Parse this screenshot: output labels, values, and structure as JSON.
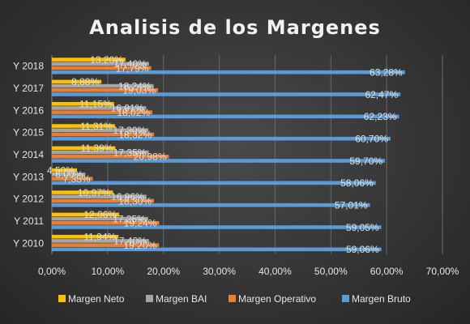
{
  "chart_data": {
    "type": "bar",
    "orientation": "horizontal",
    "title": "Analisis de los Margenes",
    "categories": [
      "Y 2010",
      "Y 2011",
      "Y 2012",
      "Y 2013",
      "Y 2014",
      "Y 2015",
      "Y 2016",
      "Y 2017",
      "Y 2018"
    ],
    "series": [
      {
        "name": "Margen Neto",
        "color": "#ffc000",
        "values": [
          11.94,
          12.06,
          10.97,
          4.5,
          11.39,
          11.31,
          11.15,
          8.88,
          13.2
        ],
        "labels": [
          "11,94%",
          "12,06%",
          "10,97%",
          "4,50%",
          "11,39%",
          "11,31%",
          "11,15%",
          "8,88%",
          "13,20%"
        ]
      },
      {
        "name": "Margen BAI",
        "color": "#a5a5a5",
        "values": [
          17.4,
          17.25,
          16.96,
          6.0,
          17.35,
          17.3,
          16.91,
          18.24,
          17.4
        ],
        "labels": [
          "17,40%",
          "17,25%",
          "16,96%",
          "6,00%",
          "17,35%",
          "17,30%",
          "16,91%",
          "18,24%",
          "17,40%"
        ]
      },
      {
        "name": "Margen Operativo",
        "color": "#ed7d31",
        "values": [
          19.2,
          19.24,
          18.3,
          7.35,
          20.98,
          18.32,
          18.02,
          19.03,
          17.79
        ],
        "labels": [
          "19,20%",
          "19,24%",
          "18,30%",
          "7,35%",
          "20,98%",
          "18,32%",
          "18,02%",
          "19,03%",
          "17,79%"
        ]
      },
      {
        "name": "Margen Bruto",
        "color": "#5b9bd5",
        "values": [
          59.06,
          59.05,
          57.01,
          58.06,
          59.7,
          60.7,
          62.23,
          62.47,
          63.28
        ],
        "labels": [
          "59,06%",
          "59,05%",
          "57,01%",
          "58,06%",
          "59,70%",
          "60,70%",
          "62,23%",
          "62,47%",
          "63,28%"
        ]
      }
    ],
    "xlim": [
      0,
      70
    ],
    "x_ticks": [
      "0,00%",
      "10,00%",
      "20,00%",
      "30,00%",
      "40,00%",
      "50,00%",
      "60,00%",
      "70,00%"
    ],
    "xlabel": "",
    "ylabel": "",
    "grid": true,
    "legend_position": "bottom"
  }
}
